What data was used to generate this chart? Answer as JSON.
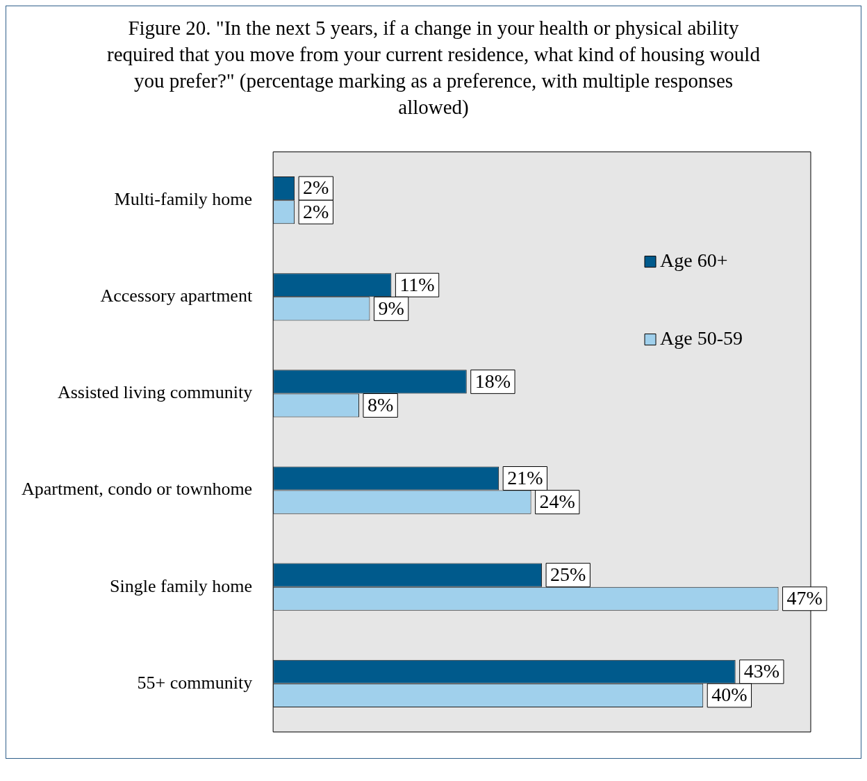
{
  "chart_data": {
    "type": "bar",
    "orientation": "horizontal",
    "title": "Figure 20. \"In the next 5 years, if a change in your health or physical ability required that you move from your current residence, what kind of housing would you prefer?\" (percentage marking as a preference, with multiple responses allowed)",
    "categories": [
      "Multi-family home",
      "Accessory apartment",
      "Assisted living community",
      "Apartment, condo or townhome",
      "Single family home",
      "55+ community"
    ],
    "series": [
      {
        "name": "Age 60+",
        "color": "#005a8c",
        "values": [
          2,
          11,
          18,
          21,
          25,
          43
        ],
        "value_labels": [
          "2%",
          "11%",
          "18%",
          "21%",
          "25%",
          "43%"
        ]
      },
      {
        "name": "Age 50-59",
        "color": "#a0d0ec",
        "values": [
          2,
          9,
          8,
          24,
          47,
          40
        ],
        "value_labels": [
          "2%",
          "9%",
          "8%",
          "24%",
          "47%",
          "40%"
        ]
      }
    ],
    "legend": "top right",
    "tick_labels": "y"
  }
}
